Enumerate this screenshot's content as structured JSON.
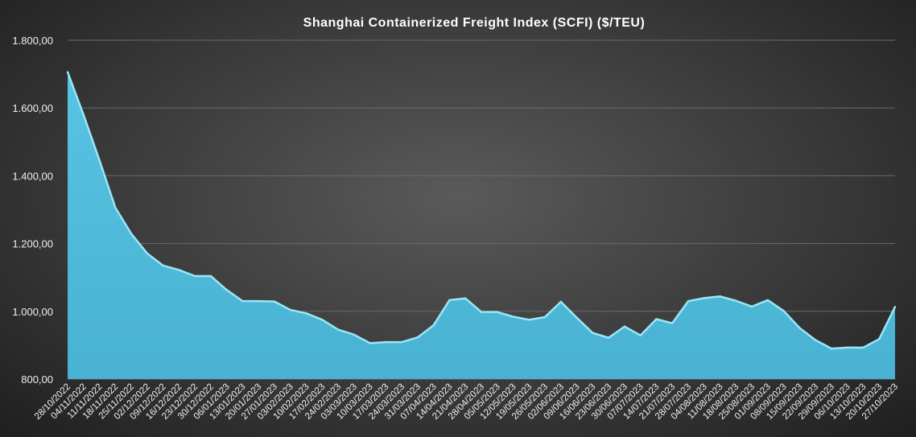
{
  "chart_data": {
    "type": "area",
    "title": "Shanghai Containerized Freight Index  (SCFI) ($/TEU)",
    "xlabel": "",
    "ylabel": "",
    "ylim": [
      800,
      1800
    ],
    "yticks": [
      "800,00",
      "1.000,00",
      "1.200,00",
      "1.400,00",
      "1.600,00",
      "1.800,00"
    ],
    "ytick_values": [
      800,
      1000,
      1200,
      1400,
      1600,
      1800
    ],
    "grid": true,
    "legend": "none",
    "colors": {
      "fill": "#4fb9d9",
      "edge": "#9ae6f7"
    },
    "x": [
      "28/10/2022",
      "04/11/2022",
      "11/11/2022",
      "18/11/2022",
      "25/11/2022",
      "02/12/2022",
      "09/12/2022",
      "16/12/2022",
      "23/12/2022",
      "30/12/2022",
      "06/01/2023",
      "13/01/2023",
      "20/01/2023",
      "27/01/2023",
      "03/02/2023",
      "10/02/2023",
      "17/02/2023",
      "24/02/2023",
      "03/03/2023",
      "10/03/2023",
      "17/03/2023",
      "24/03/2023",
      "31/03/2023",
      "07/04/2023",
      "14/04/2023",
      "21/04/2023",
      "28/04/2023",
      "05/05/2023",
      "12/05/2023",
      "19/05/2023",
      "26/05/2023",
      "02/06/2023",
      "09/06/2023",
      "16/06/2023",
      "23/06/2023",
      "30/06/2023",
      "07/07/2023",
      "14/07/2023",
      "21/07/2023",
      "28/07/2023",
      "04/08/2023",
      "11/08/2023",
      "18/08/2023",
      "25/08/2023",
      "01/09/2023",
      "08/09/2023",
      "15/09/2023",
      "22/09/2023",
      "29/09/2023",
      "06/10/2023",
      "13/10/2023",
      "20/10/2023",
      "27/10/2023"
    ],
    "values": [
      1706,
      1580,
      1446,
      1306,
      1229,
      1171,
      1135,
      1122,
      1104,
      1104,
      1063,
      1030,
      1030,
      1029,
      1004,
      994,
      975,
      946,
      931,
      906,
      909,
      909,
      923,
      959,
      1033,
      1038,
      998,
      998,
      984,
      975,
      983,
      1028,
      981,
      936,
      922,
      955,
      929,
      977,
      965,
      1030,
      1039,
      1044,
      1031,
      1014,
      1033,
      1001,
      951,
      915,
      890,
      893,
      893,
      918,
      1013
    ]
  }
}
